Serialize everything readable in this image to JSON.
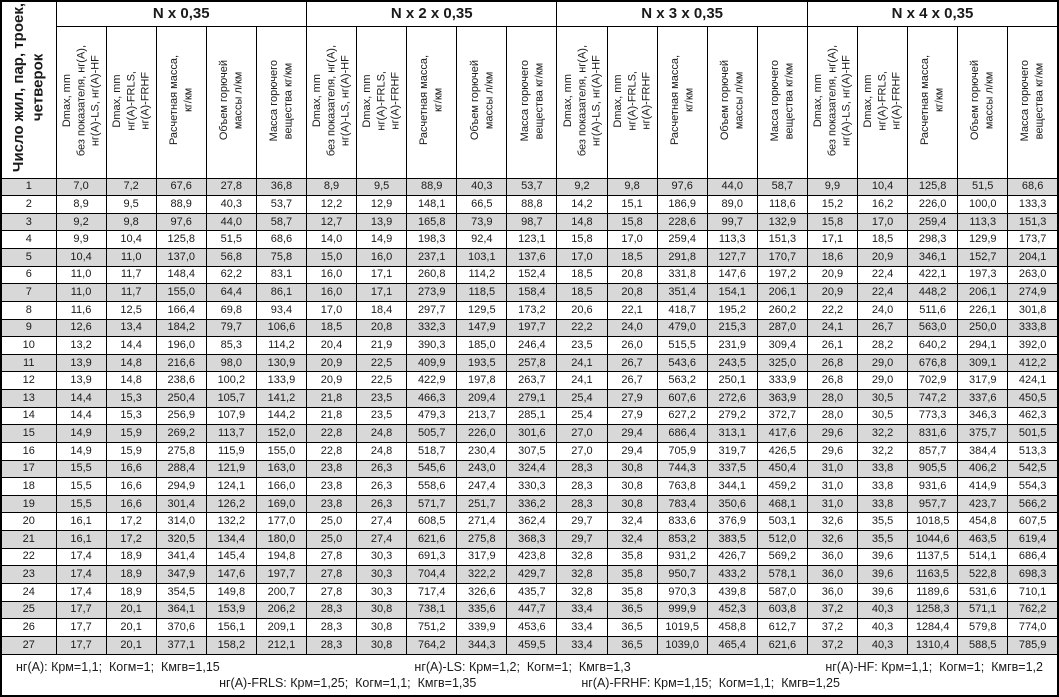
{
  "first_col_header": "Число жил, пар, троек,\nчетверок",
  "groups": [
    {
      "label": "N х 0,35"
    },
    {
      "label": "N х 2 х 0,35"
    },
    {
      "label": "N х 3 х 0,35"
    },
    {
      "label": "N х 4 х 0,35"
    }
  ],
  "sub_headers": [
    "Dmax, mm\nбез показателя, нг(А),\nнг(А)-LS, нг(А)-HF",
    "Dmax, mm\nнг(А)-FRLS,\nнг(А)-FRHF",
    "Расчетная масса,\nкг/км",
    "Объем горючей\nмассы л/км",
    "Масса горючего\nвещества кг/км"
  ],
  "rows": [
    {
      "n": "1",
      "values": [
        "7,0",
        "7,2",
        "67,6",
        "27,8",
        "36,8",
        "8,9",
        "9,5",
        "88,9",
        "40,3",
        "53,7",
        "9,2",
        "9,8",
        "97,6",
        "44,0",
        "58,7",
        "9,9",
        "10,4",
        "125,8",
        "51,5",
        "68,6"
      ]
    },
    {
      "n": "2",
      "values": [
        "8,9",
        "9,5",
        "88,9",
        "40,3",
        "53,7",
        "12,2",
        "12,9",
        "148,1",
        "66,5",
        "88,8",
        "14,2",
        "15,1",
        "186,9",
        "89,0",
        "118,6",
        "15,2",
        "16,2",
        "226,0",
        "100,0",
        "133,3"
      ]
    },
    {
      "n": "3",
      "values": [
        "9,2",
        "9,8",
        "97,6",
        "44,0",
        "58,7",
        "12,7",
        "13,9",
        "165,8",
        "73,9",
        "98,7",
        "14,8",
        "15,8",
        "228,6",
        "99,7",
        "132,9",
        "15,8",
        "17,0",
        "259,4",
        "113,3",
        "151,3"
      ]
    },
    {
      "n": "4",
      "values": [
        "9,9",
        "10,4",
        "125,8",
        "51,5",
        "68,6",
        "14,0",
        "14,9",
        "198,3",
        "92,4",
        "123,1",
        "15,8",
        "17,0",
        "259,4",
        "113,3",
        "151,3",
        "17,1",
        "18,5",
        "298,3",
        "129,9",
        "173,7"
      ]
    },
    {
      "n": "5",
      "values": [
        "10,4",
        "11,0",
        "137,0",
        "56,8",
        "75,8",
        "15,0",
        "16,0",
        "237,1",
        "103,1",
        "137,6",
        "17,0",
        "18,5",
        "291,8",
        "127,7",
        "170,7",
        "18,6",
        "20,9",
        "346,1",
        "152,7",
        "204,1"
      ]
    },
    {
      "n": "6",
      "values": [
        "11,0",
        "11,7",
        "148,4",
        "62,2",
        "83,1",
        "16,0",
        "17,1",
        "260,8",
        "114,2",
        "152,4",
        "18,5",
        "20,8",
        "331,8",
        "147,6",
        "197,2",
        "20,9",
        "22,4",
        "422,1",
        "197,3",
        "263,0"
      ]
    },
    {
      "n": "7",
      "values": [
        "11,0",
        "11,7",
        "155,0",
        "64,4",
        "86,1",
        "16,0",
        "17,1",
        "273,9",
        "118,5",
        "158,4",
        "18,5",
        "20,8",
        "351,4",
        "154,1",
        "206,1",
        "20,9",
        "22,4",
        "448,2",
        "206,1",
        "274,9"
      ]
    },
    {
      "n": "8",
      "values": [
        "11,6",
        "12,5",
        "166,4",
        "69,8",
        "93,4",
        "17,0",
        "18,4",
        "297,7",
        "129,5",
        "173,2",
        "20,6",
        "22,1",
        "418,7",
        "195,2",
        "260,2",
        "22,2",
        "24,0",
        "511,6",
        "226,1",
        "301,8"
      ]
    },
    {
      "n": "9",
      "values": [
        "12,6",
        "13,4",
        "184,2",
        "79,7",
        "106,6",
        "18,5",
        "20,8",
        "332,3",
        "147,9",
        "197,7",
        "22,2",
        "24,0",
        "479,0",
        "215,3",
        "287,0",
        "24,1",
        "26,7",
        "563,0",
        "250,0",
        "333,8"
      ]
    },
    {
      "n": "10",
      "values": [
        "13,2",
        "14,4",
        "196,0",
        "85,3",
        "114,2",
        "20,4",
        "21,9",
        "390,3",
        "185,0",
        "246,4",
        "23,5",
        "26,0",
        "515,5",
        "231,9",
        "309,4",
        "26,1",
        "28,2",
        "640,2",
        "294,1",
        "392,0"
      ]
    },
    {
      "n": "11",
      "values": [
        "13,9",
        "14,8",
        "216,6",
        "98,0",
        "130,9",
        "20,9",
        "22,5",
        "409,9",
        "193,5",
        "257,8",
        "24,1",
        "26,7",
        "543,6",
        "243,5",
        "325,0",
        "26,8",
        "29,0",
        "676,8",
        "309,1",
        "412,2"
      ]
    },
    {
      "n": "12",
      "values": [
        "13,9",
        "14,8",
        "238,6",
        "100,2",
        "133,9",
        "20,9",
        "22,5",
        "422,9",
        "197,8",
        "263,7",
        "24,1",
        "26,7",
        "563,2",
        "250,1",
        "333,9",
        "26,8",
        "29,0",
        "702,9",
        "317,9",
        "424,1"
      ]
    },
    {
      "n": "13",
      "values": [
        "14,4",
        "15,3",
        "250,4",
        "105,7",
        "141,2",
        "21,8",
        "23,5",
        "466,3",
        "209,4",
        "279,1",
        "25,4",
        "27,9",
        "607,6",
        "272,6",
        "363,9",
        "28,0",
        "30,5",
        "747,2",
        "337,6",
        "450,5"
      ]
    },
    {
      "n": "14",
      "values": [
        "14,4",
        "15,3",
        "256,9",
        "107,9",
        "144,2",
        "21,8",
        "23,5",
        "479,3",
        "213,7",
        "285,1",
        "25,4",
        "27,9",
        "627,2",
        "279,2",
        "372,7",
        "28,0",
        "30,5",
        "773,3",
        "346,3",
        "462,3"
      ]
    },
    {
      "n": "15",
      "values": [
        "14,9",
        "15,9",
        "269,2",
        "113,7",
        "152,0",
        "22,8",
        "24,8",
        "505,7",
        "226,0",
        "301,6",
        "27,0",
        "29,4",
        "686,4",
        "313,1",
        "417,6",
        "29,6",
        "32,2",
        "831,6",
        "375,7",
        "501,5"
      ]
    },
    {
      "n": "16",
      "values": [
        "14,9",
        "15,9",
        "275,8",
        "115,9",
        "155,0",
        "22,8",
        "24,8",
        "518,7",
        "230,4",
        "307,5",
        "27,0",
        "29,4",
        "705,9",
        "319,7",
        "426,5",
        "29,6",
        "32,2",
        "857,7",
        "384,4",
        "513,3"
      ]
    },
    {
      "n": "17",
      "values": [
        "15,5",
        "16,6",
        "288,4",
        "121,9",
        "163,0",
        "23,8",
        "26,3",
        "545,6",
        "243,0",
        "324,4",
        "28,3",
        "30,8",
        "744,3",
        "337,5",
        "450,4",
        "31,0",
        "33,8",
        "905,5",
        "406,2",
        "542,5"
      ]
    },
    {
      "n": "18",
      "values": [
        "15,5",
        "16,6",
        "294,9",
        "124,1",
        "166,0",
        "23,8",
        "26,3",
        "558,6",
        "247,4",
        "330,3",
        "28,3",
        "30,8",
        "763,8",
        "344,1",
        "459,2",
        "31,0",
        "33,8",
        "931,6",
        "414,9",
        "554,3"
      ]
    },
    {
      "n": "19",
      "values": [
        "15,5",
        "16,6",
        "301,4",
        "126,2",
        "169,0",
        "23,8",
        "26,3",
        "571,7",
        "251,7",
        "336,2",
        "28,3",
        "30,8",
        "783,4",
        "350,6",
        "468,1",
        "31,0",
        "33,8",
        "957,7",
        "423,7",
        "566,2"
      ]
    },
    {
      "n": "20",
      "values": [
        "16,1",
        "17,2",
        "314,0",
        "132,2",
        "177,0",
        "25,0",
        "27,4",
        "608,5",
        "271,4",
        "362,4",
        "29,7",
        "32,4",
        "833,6",
        "376,9",
        "503,1",
        "32,6",
        "35,5",
        "1018,5",
        "454,8",
        "607,5"
      ]
    },
    {
      "n": "21",
      "values": [
        "16,1",
        "17,2",
        "320,5",
        "134,4",
        "180,0",
        "25,0",
        "27,4",
        "621,6",
        "275,8",
        "368,3",
        "29,7",
        "32,4",
        "853,2",
        "383,5",
        "512,0",
        "32,6",
        "35,5",
        "1044,6",
        "463,5",
        "619,4"
      ]
    },
    {
      "n": "22",
      "values": [
        "17,4",
        "18,9",
        "341,4",
        "145,4",
        "194,8",
        "27,8",
        "30,3",
        "691,3",
        "317,9",
        "423,8",
        "32,8",
        "35,8",
        "931,2",
        "426,7",
        "569,2",
        "36,0",
        "39,6",
        "1137,5",
        "514,1",
        "686,4"
      ]
    },
    {
      "n": "23",
      "values": [
        "17,4",
        "18,9",
        "347,9",
        "147,6",
        "197,7",
        "27,8",
        "30,3",
        "704,4",
        "322,2",
        "429,7",
        "32,8",
        "35,8",
        "950,7",
        "433,2",
        "578,1",
        "36,0",
        "39,6",
        "1163,5",
        "522,8",
        "698,3"
      ]
    },
    {
      "n": "24",
      "values": [
        "17,4",
        "18,9",
        "354,5",
        "149,8",
        "200,7",
        "27,8",
        "30,3",
        "717,4",
        "326,6",
        "435,7",
        "32,8",
        "35,8",
        "970,3",
        "439,8",
        "587,0",
        "36,0",
        "39,6",
        "1189,6",
        "531,6",
        "710,1"
      ]
    },
    {
      "n": "25",
      "values": [
        "17,7",
        "20,1",
        "364,1",
        "153,9",
        "206,2",
        "28,3",
        "30,8",
        "738,1",
        "335,6",
        "447,7",
        "33,4",
        "36,5",
        "999,9",
        "452,3",
        "603,8",
        "37,2",
        "40,3",
        "1258,3",
        "571,1",
        "762,2"
      ]
    },
    {
      "n": "26",
      "values": [
        "17,7",
        "20,1",
        "370,6",
        "156,1",
        "209,1",
        "28,3",
        "30,8",
        "751,2",
        "339,9",
        "453,6",
        "33,4",
        "36,5",
        "1019,5",
        "458,8",
        "612,7",
        "37,2",
        "40,3",
        "1284,4",
        "579,8",
        "774,0"
      ]
    },
    {
      "n": "27",
      "values": [
        "17,7",
        "20,1",
        "377,1",
        "158,2",
        "212,1",
        "28,3",
        "30,8",
        "764,2",
        "344,3",
        "459,5",
        "33,4",
        "36,5",
        "1039,0",
        "465,4",
        "621,6",
        "37,2",
        "40,3",
        "1310,4",
        "588,5",
        "785,9"
      ]
    }
  ],
  "footer": {
    "line1": [
      "нг(А): Крм=1,1;  Когм=1;  Кмгв=1,15",
      "нг(А)-LS: Крм=1,2;  Когм=1;  Кмгв=1,3",
      "нг(А)-HF: Крм=1,1;  Когм=1;  Кмгв=1,2"
    ],
    "line2": [
      "нг(А)-FRLS: Крм=1,25;  Когм=1,1;  Кмгв=1,35",
      "нг(А)-FRHF: Крм=1,15;  Когм=1,1;  Кмгв=1,25"
    ]
  },
  "colors": {
    "row_stripe": "#d8d8d8",
    "border": "#000000"
  }
}
